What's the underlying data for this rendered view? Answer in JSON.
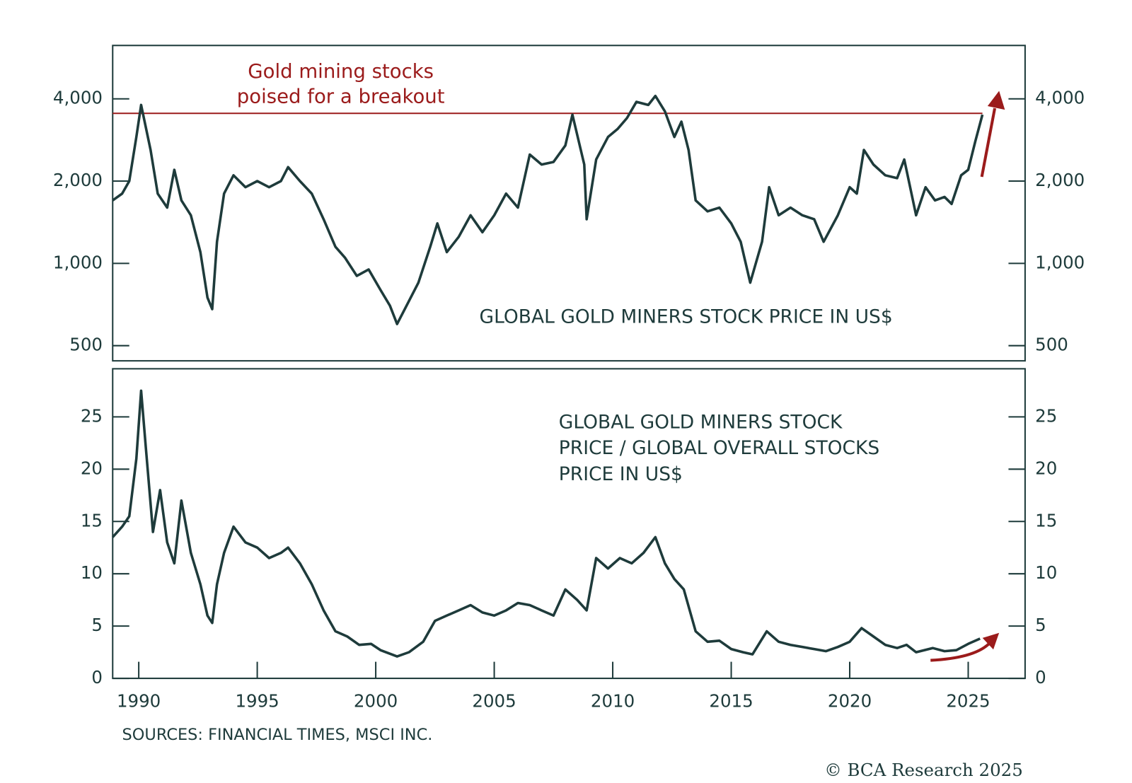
{
  "chart_data": [
    {
      "type": "line",
      "log_scale": true,
      "line_color": "#1e3b3b",
      "annotation": {
        "lines": [
          "Gold mining stocks",
          "poised for a breakout"
        ],
        "color": "#9b1b1b"
      },
      "label": [
        "GLOBAL GOLD MINERS STOCK PRICE IN US$"
      ],
      "hline": {
        "value": 3540,
        "color": "#9b1b1b"
      },
      "xlim": [
        1988.9,
        2027.4
      ],
      "ylim": [
        440,
        6270
      ],
      "yticks": [
        500,
        {
          "value": 1000,
          "label": "1,000"
        },
        {
          "value": 2000,
          "label": "2,000"
        },
        {
          "value": 4000,
          "label": "4,000"
        }
      ],
      "x": [
        1988.9,
        1989.3,
        1989.6,
        1989.9,
        1990.1,
        1990.5,
        1990.8,
        1991.2,
        1991.5,
        1991.8,
        1992.2,
        1992.6,
        1992.9,
        1993.1,
        1993.3,
        1993.6,
        1994.0,
        1994.5,
        1995.0,
        1995.5,
        1996.0,
        1996.3,
        1996.8,
        1997.3,
        1997.8,
        1998.3,
        1998.7,
        1999.2,
        1999.7,
        2000.2,
        2000.6,
        2000.9,
        2001.3,
        2001.8,
        2002.3,
        2002.6,
        2003.0,
        2003.5,
        2004.0,
        2004.5,
        2005.0,
        2005.5,
        2006.0,
        2006.5,
        2007.0,
        2007.5,
        2008.0,
        2008.3,
        2008.8,
        2008.9,
        2009.3,
        2009.8,
        2010.2,
        2010.6,
        2011.0,
        2011.5,
        2011.8,
        2012.2,
        2012.6,
        2012.9,
        2013.2,
        2013.5,
        2014.0,
        2014.5,
        2015.0,
        2015.4,
        2015.8,
        2016.3,
        2016.6,
        2017.0,
        2017.5,
        2018.0,
        2018.5,
        2018.9,
        2019.5,
        2020.0,
        2020.3,
        2020.6,
        2021.0,
        2021.5,
        2022.0,
        2022.3,
        2022.8,
        2023.2,
        2023.6,
        2024.0,
        2024.3,
        2024.7,
        2025.0,
        2025.3,
        2025.6
      ],
      "values": [
        1700,
        1800,
        2000,
        2900,
        3800,
        2600,
        1800,
        1600,
        2200,
        1700,
        1500,
        1100,
        750,
        680,
        1200,
        1800,
        2100,
        1900,
        2000,
        1900,
        2000,
        2250,
        2000,
        1800,
        1450,
        1150,
        1050,
        900,
        950,
        800,
        700,
        600,
        700,
        850,
        1150,
        1400,
        1100,
        1250,
        1500,
        1300,
        1500,
        1800,
        1600,
        2500,
        2300,
        2350,
        2700,
        3500,
        2300,
        1450,
        2400,
        2900,
        3100,
        3400,
        3900,
        3800,
        4100,
        3600,
        2900,
        3300,
        2600,
        1700,
        1550,
        1600,
        1400,
        1200,
        850,
        1200,
        1900,
        1500,
        1600,
        1500,
        1450,
        1200,
        1500,
        1900,
        1800,
        2600,
        2300,
        2100,
        2050,
        2400,
        1500,
        1900,
        1700,
        1750,
        1650,
        2100,
        2200,
        2800,
        3500
      ]
    },
    {
      "type": "line",
      "log_scale": false,
      "line_color": "#1e3b3b",
      "label": [
        "GLOBAL GOLD MINERS STOCK",
        "PRICE / GLOBAL OVERALL STOCKS",
        "PRICE IN US$"
      ],
      "xlim": [
        1988.9,
        2027.4
      ],
      "ylim": [
        0,
        29.6
      ],
      "xticks": [
        1990,
        1995,
        2000,
        2005,
        2010,
        2015,
        2020,
        2025
      ],
      "yticks": [
        0,
        5,
        10,
        15,
        20,
        25
      ],
      "x": [
        1988.9,
        1989.3,
        1989.6,
        1989.9,
        1990.1,
        1990.3,
        1990.6,
        1990.9,
        1991.2,
        1991.5,
        1991.8,
        1992.2,
        1992.6,
        1992.9,
        1993.1,
        1993.3,
        1993.6,
        1994.0,
        1994.5,
        1995.0,
        1995.5,
        1996.0,
        1996.3,
        1996.8,
        1997.3,
        1997.8,
        1998.3,
        1998.8,
        1999.3,
        1999.8,
        2000.2,
        2000.9,
        2001.4,
        2002.0,
        2002.5,
        2003.0,
        2003.5,
        2004.0,
        2004.5,
        2005.0,
        2005.5,
        2006.0,
        2006.5,
        2007.0,
        2007.5,
        2008.0,
        2008.5,
        2008.9,
        2009.3,
        2009.8,
        2010.3,
        2010.8,
        2011.3,
        2011.8,
        2012.2,
        2012.6,
        2013.0,
        2013.5,
        2014.0,
        2014.5,
        2015.0,
        2015.5,
        2015.9,
        2016.5,
        2017.0,
        2017.5,
        2018.0,
        2018.5,
        2019.0,
        2019.5,
        2020.0,
        2020.5,
        2021.0,
        2021.5,
        2022.0,
        2022.4,
        2022.8,
        2023.5,
        2024.0,
        2024.5,
        2025.0,
        2025.5
      ],
      "values": [
        13.5,
        14.5,
        15.5,
        21,
        27.5,
        22,
        14,
        18,
        13,
        11,
        17,
        12,
        9,
        6,
        5.3,
        9,
        12,
        14.5,
        13,
        12.5,
        11.5,
        12,
        12.5,
        11,
        9,
        6.5,
        4.5,
        4,
        3.2,
        3.3,
        2.7,
        2.1,
        2.5,
        3.5,
        5.5,
        6,
        6.5,
        7,
        6.3,
        6,
        6.5,
        7.2,
        7,
        6.5,
        6,
        8.5,
        7.5,
        6.5,
        11.5,
        10.5,
        11.5,
        11,
        12,
        13.5,
        11,
        9.5,
        8.5,
        4.5,
        3.5,
        3.6,
        2.8,
        2.5,
        2.3,
        4.5,
        3.5,
        3.2,
        3.0,
        2.8,
        2.6,
        3.0,
        3.5,
        4.8,
        4.0,
        3.2,
        2.9,
        3.2,
        2.5,
        2.9,
        2.6,
        2.7,
        3.3,
        3.8
      ]
    }
  ],
  "sources": "SOURCES: FINANCIAL TIMES, MSCI INC.",
  "credit": "© BCA Research 2025"
}
